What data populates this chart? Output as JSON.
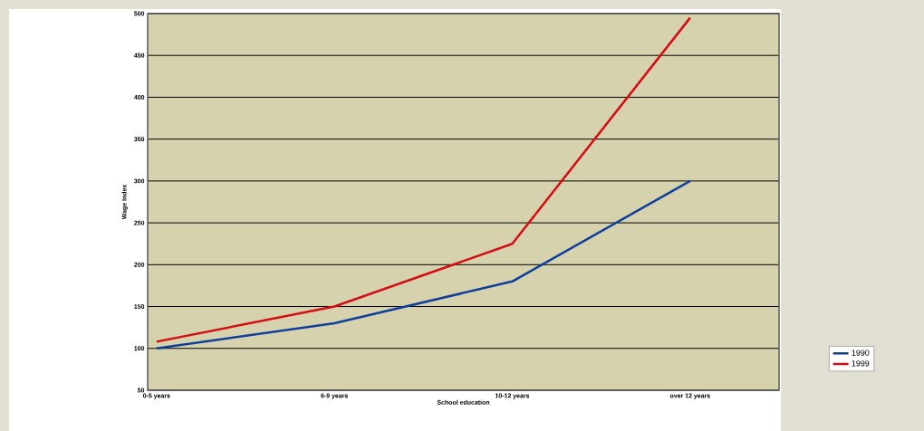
{
  "chart_data": {
    "type": "line",
    "xlabel": "School education",
    "ylabel": "Wage Index",
    "categories": [
      "0-5 years",
      "6-9 years",
      "10-12 years",
      "over 12 years"
    ],
    "series": [
      {
        "name": "1990",
        "color": "#0f3f9a",
        "values": [
          100,
          130,
          180,
          300
        ]
      },
      {
        "name": "1999",
        "color": "#d40d12",
        "values": [
          108,
          150,
          225,
          495
        ]
      }
    ],
    "ylim": [
      50,
      500
    ],
    "yticks": [
      50,
      100,
      150,
      200,
      250,
      300,
      350,
      400,
      450,
      500
    ],
    "grid": "y",
    "legend": "right",
    "marker": "none",
    "line_style": "solid"
  }
}
